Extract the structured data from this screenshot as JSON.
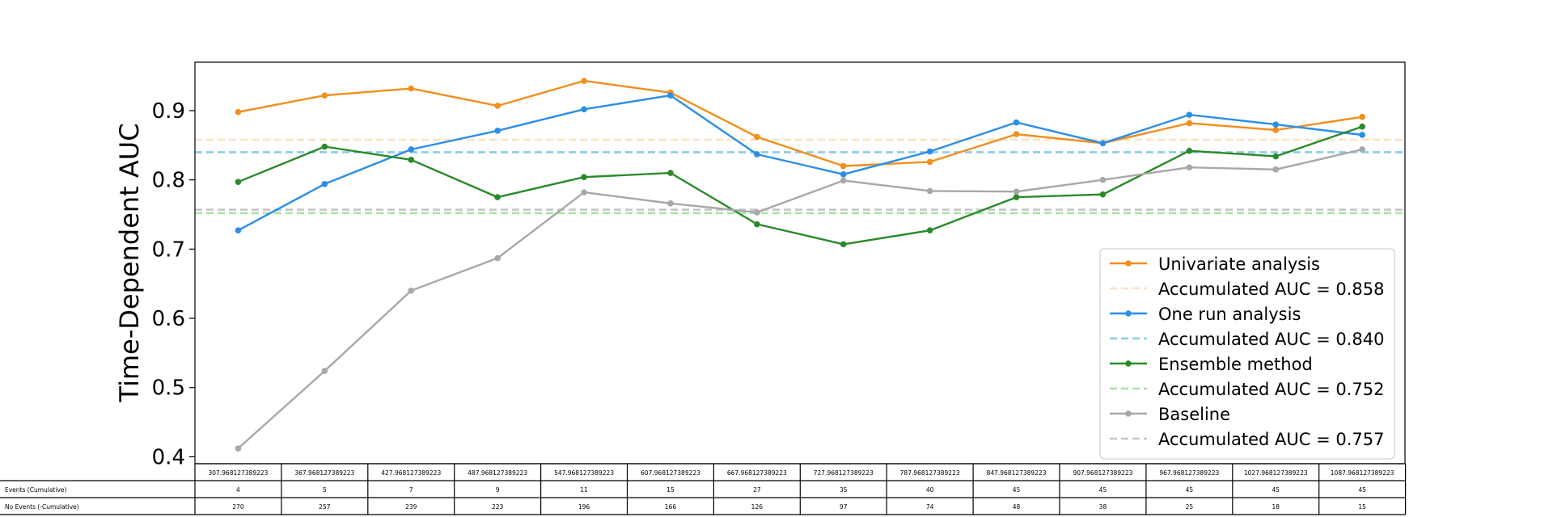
{
  "chart_data": {
    "type": "line",
    "title": "",
    "xlabel": "",
    "ylabel": "Time-Dependent AUC",
    "ylim": [
      0.39,
      0.97
    ],
    "yticks": [
      "0.4",
      "0.5",
      "0.6",
      "0.7",
      "0.8",
      "0.9"
    ],
    "grid": false,
    "legend_position": "lower-right",
    "x": [
      "307.968127389223",
      "367.968127389223",
      "427.968127389223",
      "487.968127389223",
      "547.968127389223",
      "607.968127389223",
      "667.968127389223",
      "727.968127389223",
      "787.968127389223",
      "847.968127389223",
      "907.968127389223",
      "967.968127389223",
      "1027.968127389223",
      "1087.968127389223"
    ],
    "series": [
      {
        "name": "Univariate analysis",
        "color": "#f28e1c",
        "values": [
          0.898,
          0.922,
          0.932,
          0.907,
          0.943,
          0.926,
          0.862,
          0.82,
          0.826,
          0.866,
          0.853,
          0.882,
          0.872,
          0.891
        ],
        "accumulated": 0.858,
        "accumulated_label": "Accumulated AUC = 0.858",
        "accumulated_color": "#fbe2bf"
      },
      {
        "name": "One run analysis",
        "color": "#2a8ee8",
        "values": [
          0.727,
          0.794,
          0.844,
          0.871,
          0.902,
          0.922,
          0.837,
          0.808,
          0.841,
          0.883,
          0.853,
          0.894,
          0.88,
          0.865
        ],
        "accumulated": 0.84,
        "accumulated_label": "Accumulated AUC = 0.840",
        "accumulated_color": "#8ccbe8"
      },
      {
        "name": "Ensemble method",
        "color": "#2a8a2a",
        "values": [
          0.797,
          0.848,
          0.829,
          0.775,
          0.804,
          0.81,
          0.736,
          0.707,
          0.727,
          0.775,
          0.779,
          0.842,
          0.834,
          0.877
        ],
        "accumulated": 0.752,
        "accumulated_label": "Accumulated AUC = 0.752",
        "accumulated_color": "#a5e6a2"
      },
      {
        "name": "Baseline",
        "color": "#a8a8a8",
        "values": [
          0.412,
          0.524,
          0.64,
          0.687,
          0.782,
          0.766,
          0.753,
          0.799,
          0.784,
          0.783,
          0.8,
          0.818,
          0.815,
          0.844
        ],
        "accumulated": 0.757,
        "accumulated_label": "Accumulated AUC = 0.757",
        "accumulated_color": "#c8c4cc"
      }
    ],
    "table": {
      "rows": [
        {
          "label": "Events (Cumulative)",
          "values": [
            "4",
            "5",
            "7",
            "9",
            "11",
            "15",
            "27",
            "35",
            "40",
            "45",
            "45",
            "45",
            "45",
            "45"
          ]
        },
        {
          "label": "No Events (-Cumulative)",
          "values": [
            "270",
            "257",
            "239",
            "223",
            "196",
            "166",
            "126",
            "97",
            "74",
            "48",
            "38",
            "25",
            "18",
            "15"
          ]
        }
      ]
    }
  }
}
